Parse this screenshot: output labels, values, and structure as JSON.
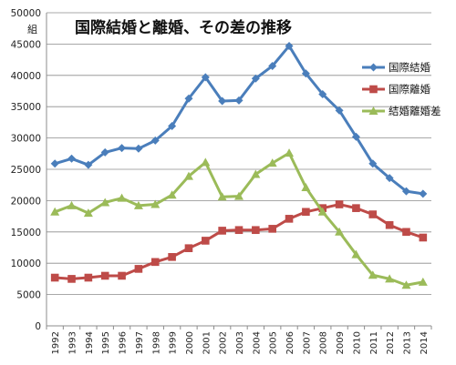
{
  "chart_data": {
    "type": "line",
    "title": "国際結婚と離婚、その差の推移",
    "ylabel": "組",
    "xlabel": "",
    "ylim": [
      0,
      50000
    ],
    "yticks": [
      0,
      5000,
      10000,
      15000,
      20000,
      25000,
      30000,
      35000,
      40000,
      45000,
      50000
    ],
    "grid": true,
    "legend_position": "right",
    "categories": [
      "1992",
      "1993",
      "1994",
      "1995",
      "1996",
      "1997",
      "1998",
      "1999",
      "2000",
      "2001",
      "2002",
      "2003",
      "2004",
      "2005",
      "2006",
      "2007",
      "2008",
      "2009",
      "2010",
      "2011",
      "2012",
      "2013",
      "2014"
    ],
    "series": [
      {
        "name": "国際結婚",
        "color": "#4a7ebb",
        "marker": "diamond",
        "values": [
          25900,
          26700,
          25700,
          27700,
          28400,
          28300,
          29600,
          31900,
          36300,
          39700,
          35900,
          36000,
          39500,
          41500,
          44700,
          40300,
          37000,
          34400,
          30200,
          25900,
          23600,
          21500,
          21100
        ]
      },
      {
        "name": "国際離婚",
        "color": "#be4b48",
        "marker": "square",
        "values": [
          7700,
          7500,
          7700,
          8000,
          8000,
          9100,
          10200,
          11000,
          12400,
          13600,
          15200,
          15300,
          15300,
          15500,
          17100,
          18200,
          18800,
          19400,
          18800,
          17800,
          16100,
          15000,
          14100
        ]
      },
      {
        "name": "結婚離婚差",
        "color": "#9bbb59",
        "marker": "triangle",
        "values": [
          18200,
          19200,
          18000,
          19700,
          20400,
          19200,
          19400,
          20900,
          23900,
          26100,
          20600,
          20700,
          24200,
          26000,
          27600,
          22100,
          18200,
          15000,
          11400,
          8100,
          7500,
          6500,
          7000
        ]
      }
    ]
  }
}
